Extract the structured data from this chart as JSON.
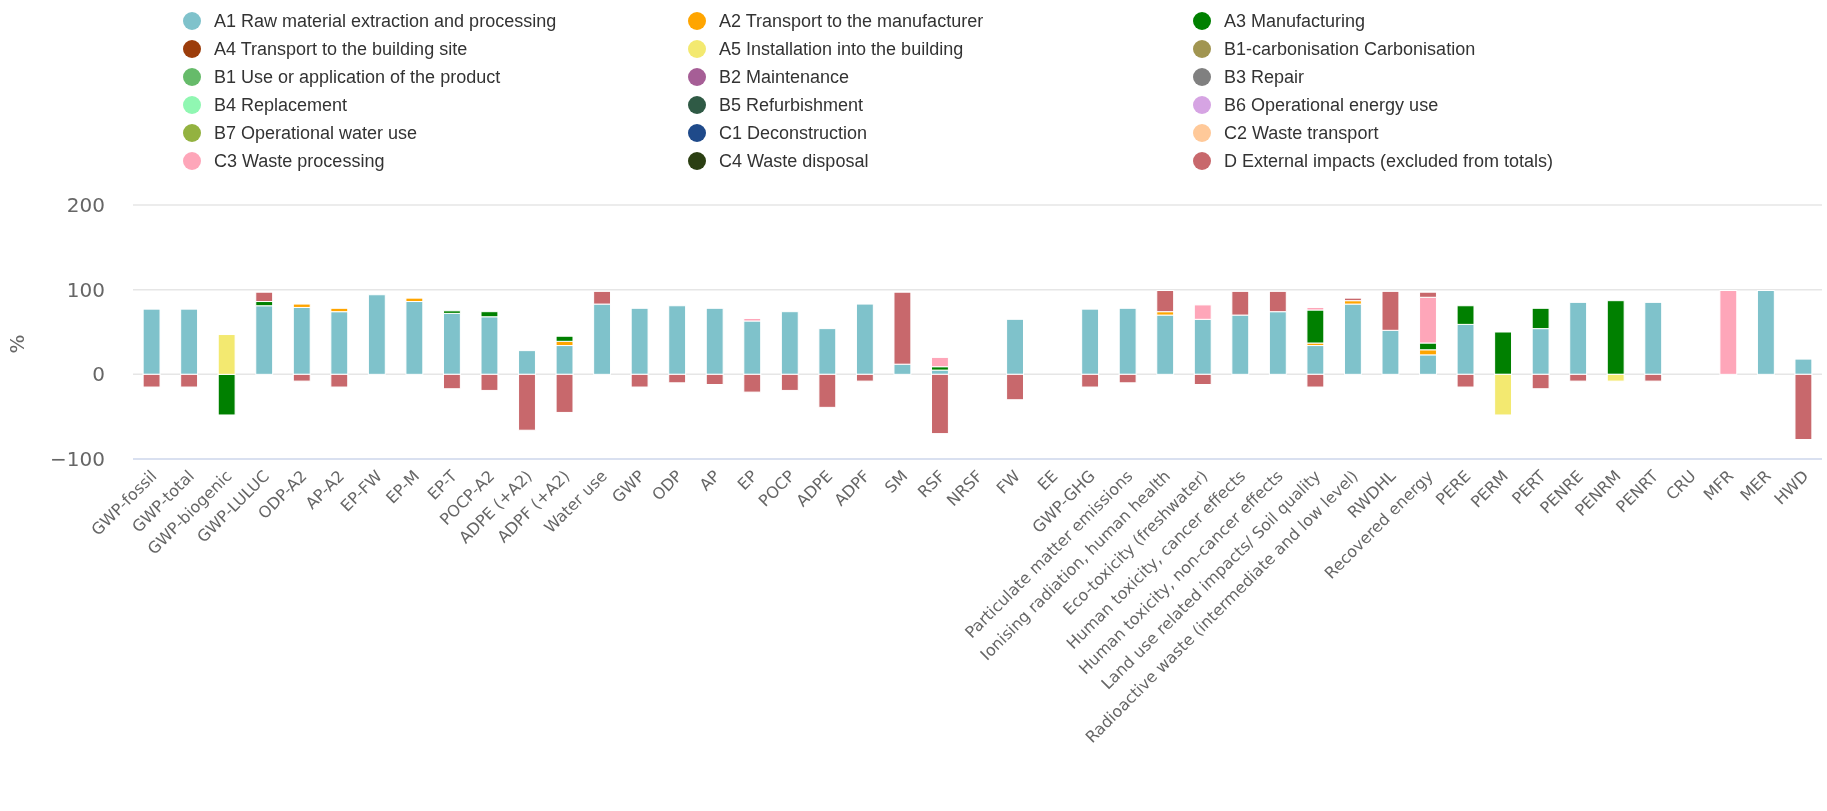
{
  "chart_data": {
    "type": "bar",
    "stacked": true,
    "ylabel": "%",
    "ylim": [
      -100,
      200
    ],
    "yticks": [
      -100,
      0,
      100,
      200
    ],
    "grid": "y",
    "legend": "top",
    "categories": [
      "GWP-fossil",
      "GWP-total",
      "GWP-biogenic",
      "GWP-LULUC",
      "ODP-A2",
      "AP-A2",
      "EP-FW",
      "EP-M",
      "EP-T",
      "POCP-A2",
      "ADPE (+A2)",
      "ADPF (+A2)",
      "Water use",
      "GWP",
      "ODP",
      "AP",
      "EP",
      "POCP",
      "ADPE",
      "ADPF",
      "SM",
      "RSF",
      "NRSF",
      "FW",
      "EE",
      "GWP-GHG",
      "Particulate matter emissions",
      "Ionising radiation, human health",
      "Eco-toxicity (freshwater)",
      "Human toxicity, cancer effects",
      "Human toxicity, non-cancer effects",
      "Land use related impacts/ Soil quality",
      "Radioactive waste (intermediate and low level)",
      "RWDHL",
      "Recovered energy",
      "PERE",
      "PERM",
      "PERT",
      "PENRE",
      "PENRM",
      "PENRT",
      "CRU",
      "MFR",
      "MER",
      "HWD"
    ],
    "series": [
      {
        "name": "A1 Raw material extraction and processing",
        "color": "#7fc2cb",
        "values": [
          77,
          77,
          null,
          81,
          79,
          74,
          94,
          86,
          72,
          68,
          28,
          34,
          83,
          78,
          81,
          78,
          63,
          74,
          54,
          83,
          12,
          5,
          null,
          65,
          null,
          77,
          78,
          70,
          65,
          70,
          74,
          34,
          83,
          52,
          23,
          59,
          null,
          54,
          85,
          null,
          85,
          null,
          null,
          99,
          18
        ]
      },
      {
        "name": "A2 Transport to the manufacturer",
        "color": "#ffa500",
        "values": [
          null,
          null,
          null,
          null,
          4,
          4,
          null,
          4,
          null,
          null,
          null,
          5,
          null,
          null,
          null,
          null,
          null,
          null,
          null,
          null,
          null,
          null,
          null,
          null,
          null,
          null,
          null,
          4,
          null,
          null,
          null,
          3,
          4,
          null,
          6,
          null,
          null,
          null,
          null,
          null,
          null,
          null,
          null,
          null,
          null
        ]
      },
      {
        "name": "A3 Manufacturing",
        "color": "#008000",
        "values": [
          null,
          null,
          -48,
          5,
          null,
          null,
          null,
          null,
          3,
          6,
          null,
          6,
          null,
          null,
          null,
          null,
          null,
          null,
          null,
          null,
          null,
          4,
          null,
          null,
          null,
          null,
          null,
          null,
          null,
          null,
          null,
          39,
          null,
          null,
          8,
          22,
          50,
          24,
          null,
          87,
          null,
          null,
          null,
          null,
          null
        ]
      },
      {
        "name": "A4 Transport to the building site",
        "color": "#9c3d0b",
        "values": [
          null,
          null,
          null,
          null,
          null,
          null,
          null,
          null,
          null,
          null,
          null,
          null,
          null,
          null,
          null,
          null,
          null,
          null,
          null,
          null,
          null,
          null,
          null,
          null,
          null,
          null,
          null,
          null,
          null,
          null,
          null,
          null,
          null,
          null,
          null,
          null,
          null,
          null,
          null,
          null,
          null,
          null,
          null,
          null,
          null
        ]
      },
      {
        "name": "A5 Installation into the building",
        "color": "#f3e970",
        "values": [
          null,
          null,
          47,
          null,
          null,
          null,
          null,
          null,
          null,
          null,
          null,
          null,
          null,
          null,
          null,
          null,
          null,
          null,
          null,
          null,
          null,
          null,
          null,
          null,
          null,
          null,
          null,
          null,
          null,
          null,
          null,
          null,
          null,
          null,
          null,
          null,
          -48,
          null,
          null,
          -8,
          null,
          null,
          null,
          null,
          null
        ]
      },
      {
        "name": "B1-carbonisation Carbonisation",
        "color": "#a19551",
        "values": [
          null,
          null,
          null,
          null,
          null,
          null,
          null,
          null,
          null,
          null,
          null,
          null,
          null,
          null,
          null,
          null,
          null,
          null,
          null,
          null,
          null,
          null,
          null,
          null,
          null,
          null,
          null,
          null,
          null,
          null,
          null,
          null,
          null,
          null,
          null,
          null,
          null,
          null,
          null,
          null,
          null,
          null,
          null,
          null,
          null
        ]
      },
      {
        "name": "B1 Use or application of the product",
        "color": "#66bb6a",
        "values": [
          null,
          null,
          null,
          null,
          null,
          null,
          null,
          null,
          null,
          null,
          null,
          null,
          null,
          null,
          null,
          null,
          null,
          null,
          null,
          null,
          null,
          null,
          null,
          null,
          null,
          null,
          null,
          null,
          null,
          null,
          null,
          null,
          null,
          null,
          null,
          null,
          null,
          null,
          null,
          null,
          null,
          null,
          null,
          null,
          null
        ]
      },
      {
        "name": "B2 Maintenance",
        "color": "#a65e96",
        "values": [
          null,
          null,
          null,
          null,
          null,
          null,
          null,
          null,
          null,
          null,
          null,
          null,
          null,
          null,
          null,
          null,
          null,
          null,
          null,
          null,
          null,
          null,
          null,
          null,
          null,
          null,
          null,
          null,
          null,
          null,
          null,
          null,
          null,
          null,
          null,
          null,
          null,
          null,
          null,
          null,
          null,
          null,
          null,
          null,
          null
        ]
      },
      {
        "name": "B3 Repair",
        "color": "#808080",
        "values": [
          null,
          null,
          null,
          null,
          null,
          null,
          null,
          null,
          null,
          null,
          null,
          null,
          null,
          null,
          null,
          null,
          null,
          null,
          null,
          null,
          null,
          null,
          null,
          null,
          null,
          null,
          null,
          null,
          null,
          null,
          null,
          null,
          null,
          null,
          null,
          null,
          null,
          null,
          null,
          null,
          null,
          null,
          null,
          null,
          null
        ]
      },
      {
        "name": "B4 Replacement",
        "color": "#90f7b2",
        "values": [
          null,
          null,
          null,
          null,
          null,
          null,
          null,
          null,
          null,
          null,
          null,
          null,
          null,
          null,
          null,
          null,
          null,
          null,
          null,
          null,
          null,
          null,
          null,
          null,
          null,
          null,
          null,
          null,
          null,
          null,
          null,
          null,
          null,
          null,
          null,
          null,
          null,
          null,
          null,
          null,
          null,
          null,
          null,
          null,
          null
        ]
      },
      {
        "name": "B5 Refurbishment",
        "color": "#2f5a45",
        "values": [
          null,
          null,
          null,
          null,
          null,
          null,
          null,
          null,
          null,
          null,
          null,
          null,
          null,
          null,
          null,
          null,
          null,
          null,
          null,
          null,
          null,
          null,
          null,
          null,
          null,
          null,
          null,
          null,
          null,
          null,
          null,
          null,
          null,
          null,
          null,
          null,
          null,
          null,
          null,
          null,
          null,
          null,
          null,
          null,
          null
        ]
      },
      {
        "name": "B6 Operational energy use",
        "color": "#d6a4e3",
        "values": [
          null,
          null,
          null,
          null,
          null,
          null,
          null,
          null,
          null,
          null,
          null,
          null,
          null,
          null,
          null,
          null,
          null,
          null,
          null,
          null,
          null,
          null,
          null,
          null,
          null,
          null,
          null,
          null,
          null,
          null,
          null,
          null,
          null,
          null,
          null,
          null,
          null,
          null,
          null,
          null,
          null,
          null,
          null,
          null,
          null
        ]
      },
      {
        "name": "B7 Operational water use",
        "color": "#93b240",
        "values": [
          null,
          null,
          null,
          null,
          null,
          null,
          null,
          null,
          null,
          null,
          null,
          null,
          null,
          null,
          null,
          null,
          null,
          null,
          null,
          null,
          null,
          null,
          null,
          null,
          null,
          null,
          null,
          null,
          null,
          null,
          null,
          null,
          null,
          null,
          null,
          null,
          null,
          null,
          null,
          null,
          null,
          null,
          null,
          null,
          null
        ]
      },
      {
        "name": "C1 Deconstruction",
        "color": "#1f4a8a",
        "values": [
          null,
          null,
          null,
          null,
          null,
          null,
          null,
          null,
          null,
          null,
          null,
          null,
          null,
          null,
          null,
          null,
          null,
          null,
          null,
          null,
          null,
          null,
          null,
          null,
          null,
          null,
          null,
          null,
          null,
          null,
          null,
          null,
          null,
          null,
          null,
          null,
          null,
          null,
          null,
          null,
          null,
          null,
          null,
          null,
          null
        ]
      },
      {
        "name": "C2 Waste transport",
        "color": "#ffc999",
        "values": [
          null,
          null,
          null,
          null,
          null,
          null,
          null,
          null,
          null,
          null,
          null,
          null,
          null,
          null,
          null,
          null,
          null,
          null,
          null,
          null,
          null,
          null,
          null,
          null,
          null,
          null,
          null,
          null,
          null,
          null,
          null,
          null,
          null,
          null,
          null,
          null,
          null,
          null,
          null,
          null,
          null,
          null,
          null,
          null,
          null
        ]
      },
      {
        "name": "C3 Waste processing",
        "color": "#fea6b9",
        "values": [
          null,
          null,
          null,
          null,
          null,
          null,
          null,
          null,
          null,
          null,
          null,
          null,
          null,
          null,
          null,
          null,
          3,
          null,
          null,
          null,
          null,
          11,
          null,
          null,
          null,
          null,
          null,
          null,
          17,
          null,
          null,
          3,
          null,
          null,
          54,
          null,
          null,
          null,
          null,
          null,
          null,
          null,
          99,
          null,
          null
        ]
      },
      {
        "name": "C4 Waste disposal",
        "color": "#2b3f12",
        "values": [
          null,
          null,
          null,
          null,
          null,
          null,
          null,
          null,
          null,
          null,
          null,
          null,
          null,
          null,
          null,
          null,
          null,
          null,
          null,
          null,
          null,
          null,
          null,
          null,
          null,
          null,
          null,
          null,
          null,
          null,
          null,
          null,
          null,
          null,
          null,
          null,
          null,
          null,
          null,
          null,
          null,
          null,
          null,
          null,
          null
        ]
      },
      {
        "name": "D External impacts (excluded from totals)",
        "color": "#c8686c",
        "values": [
          -15,
          -15,
          null,
          11,
          -8,
          -15,
          null,
          null,
          -17,
          -19,
          -66,
          -45,
          15,
          -15,
          -10,
          -12,
          -21,
          -19,
          -39,
          -8,
          85,
          -70,
          null,
          -30,
          null,
          -15,
          -10,
          25,
          -12,
          28,
          24,
          -15,
          3,
          46,
          6,
          -15,
          null,
          -17,
          -8,
          null,
          -8,
          null,
          null,
          null,
          -77
        ]
      }
    ]
  }
}
